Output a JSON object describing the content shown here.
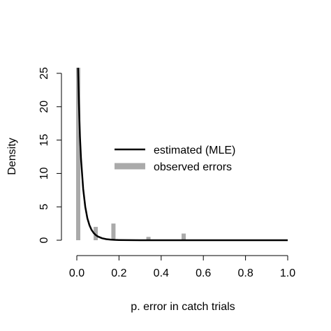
{
  "chart_data": {
    "type": "bar",
    "title": "",
    "xlabel": "p. error in catch trials",
    "ylabel": "Density",
    "xlim": [
      0,
      1
    ],
    "ylim": [
      0,
      25
    ],
    "x_ticks": [
      "0.0",
      "0.2",
      "0.4",
      "0.6",
      "0.8",
      "1.0"
    ],
    "y_ticks": [
      "0",
      "5",
      "10",
      "15",
      "20",
      "25"
    ],
    "grid": false,
    "legend": {
      "placement": "center",
      "entries": [
        {
          "label": "estimated (MLE)",
          "color": "#000000",
          "style": "thin-line"
        },
        {
          "label": "observed errors",
          "color": "#aaaaaa",
          "style": "thick-line"
        }
      ]
    },
    "series": [
      {
        "name": "observed errors",
        "kind": "bars",
        "color": "#aaaaaa",
        "x": [
          0.0,
          0.083,
          0.167,
          0.333,
          0.5
        ],
        "values": [
          26,
          2,
          2.5,
          0.5,
          1
        ]
      },
      {
        "name": "estimated (MLE)",
        "kind": "line",
        "color": "#000000",
        "x": [
          0.006,
          0.01,
          0.015,
          0.02,
          0.03,
          0.04,
          0.05,
          0.06,
          0.07,
          0.08,
          0.09,
          0.1,
          0.12,
          0.14,
          0.16,
          0.18,
          0.2,
          0.25,
          0.3,
          0.4,
          0.5,
          0.6,
          0.7,
          0.8,
          0.9,
          1.0
        ],
        "values": [
          26,
          20.5,
          15.5,
          12.2,
          7.7,
          5.0,
          3.3,
          2.25,
          1.55,
          1.08,
          0.77,
          0.55,
          0.29,
          0.16,
          0.09,
          0.05,
          0.03,
          0.008,
          0.002,
          0.0,
          0.0,
          0.0,
          0.0,
          0.0,
          0.0,
          0.0
        ]
      }
    ]
  }
}
